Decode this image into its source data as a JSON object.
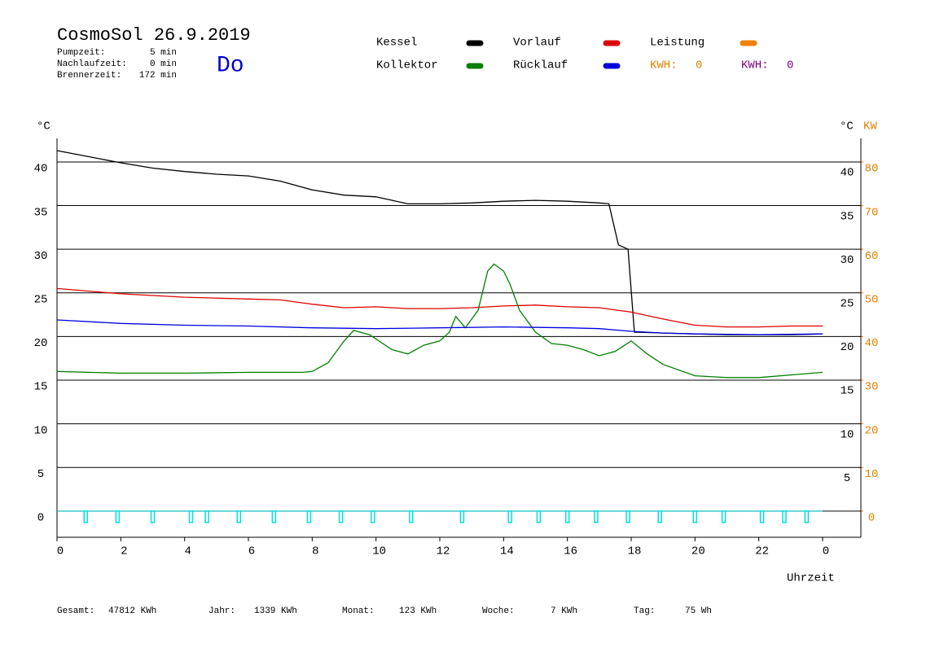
{
  "header": {
    "title": "CosmoSol 26.9.2019",
    "info": [
      {
        "label": "Pumpzeit:",
        "value": "5 min"
      },
      {
        "label": "Nachlaufzeit:",
        "value": "0 min"
      },
      {
        "label": "Brennerzeit:",
        "value": "172 min"
      }
    ],
    "day": "Do"
  },
  "chart_data": {
    "type": "line",
    "y_unit": "°C",
    "y_right_unit": "°C",
    "y2_unit": "KW",
    "x_label": "Uhrzeit",
    "xlim": [
      0,
      25.2
    ],
    "xticks": [
      0,
      2,
      4,
      6,
      8,
      10,
      12,
      14,
      16,
      18,
      20,
      22,
      {
        "value": 24,
        "label": "0"
      }
    ],
    "ylim": [
      -3,
      42.7
    ],
    "yticks": [
      0,
      5,
      10,
      15,
      20,
      25,
      30,
      35,
      40
    ],
    "y_right_ticks": [
      5,
      10,
      15,
      20,
      25,
      30,
      35,
      40
    ],
    "y2lim": [
      -6,
      85.4
    ],
    "y2ticks": [
      0,
      10,
      20,
      30,
      40,
      50,
      60,
      70,
      80
    ],
    "y2_color": "#e08000",
    "grid": true,
    "series": [
      {
        "name": "Kessel",
        "color": "#000000",
        "x": [
          0,
          1,
          2,
          3,
          4,
          5,
          6,
          7,
          8,
          9,
          10,
          11,
          12,
          13,
          14,
          15,
          16,
          17,
          17.3,
          17.6,
          17.9,
          18.1,
          19,
          20,
          21,
          22,
          23,
          24
        ],
        "values": [
          41.3,
          40.6,
          39.9,
          39.3,
          38.9,
          38.6,
          38.4,
          37.8,
          36.8,
          36.2,
          36.0,
          35.2,
          35.2,
          35.3,
          35.5,
          35.6,
          35.5,
          35.3,
          35.2,
          30.5,
          30.0,
          20.5,
          20.4,
          20.3,
          20.2,
          20.2,
          20.2,
          20.3
        ]
      },
      {
        "name": "Vorlauf",
        "color": "#dd0000",
        "x": [
          0,
          2,
          4,
          6,
          7,
          8,
          9,
          10,
          11,
          12,
          13,
          14,
          15,
          16,
          17,
          18,
          19,
          20,
          21,
          22,
          23,
          24
        ],
        "values": [
          25.5,
          24.9,
          24.5,
          24.3,
          24.2,
          23.7,
          23.3,
          23.4,
          23.2,
          23.2,
          23.3,
          23.5,
          23.6,
          23.4,
          23.3,
          22.8,
          22.0,
          21.3,
          21.1,
          21.1,
          21.2,
          21.2
        ]
      },
      {
        "name": "Leistung",
        "color": "#f08000",
        "x": [],
        "values": []
      },
      {
        "name": "Kollektor",
        "color": "#008000",
        "x": [
          0,
          2,
          4,
          6,
          7,
          7.7,
          8,
          8.5,
          9,
          9.3,
          9.8,
          10.5,
          11,
          11.5,
          12,
          12.3,
          12.5,
          12.8,
          13.2,
          13.5,
          13.7,
          14,
          14.2,
          14.5,
          15,
          15.5,
          16,
          16.5,
          17,
          17.5,
          18,
          18.5,
          19,
          20,
          21,
          22,
          23,
          24
        ],
        "values": [
          16.0,
          15.8,
          15.8,
          15.9,
          15.9,
          15.9,
          16.0,
          17.0,
          19.5,
          20.7,
          20.2,
          18.5,
          18.0,
          19.0,
          19.5,
          20.5,
          22.3,
          21.0,
          23.0,
          27.5,
          28.3,
          27.5,
          26.0,
          23.0,
          20.5,
          19.2,
          19.0,
          18.5,
          17.8,
          18.3,
          19.5,
          18.0,
          16.8,
          15.5,
          15.3,
          15.3,
          15.6,
          15.9
        ]
      },
      {
        "name": "Rücklauf",
        "color": "#0000dd",
        "x": [
          0,
          2,
          4,
          6,
          8,
          10,
          12,
          14,
          16,
          17,
          18,
          19,
          20,
          22,
          24
        ],
        "values": [
          21.9,
          21.5,
          21.3,
          21.2,
          21.0,
          20.9,
          21.0,
          21.1,
          21.0,
          20.9,
          20.6,
          20.4,
          20.3,
          20.2,
          20.3
        ]
      }
    ],
    "kwh_labels": [
      {
        "label": "KWH:",
        "value": 0,
        "color": "#e08000"
      },
      {
        "label": "KWH:",
        "value": 0,
        "color": "#800080"
      }
    ],
    "pulses": {
      "color": "#00e0e0",
      "x": [
        0.9,
        1.9,
        3.0,
        4.2,
        4.7,
        5.7,
        6.8,
        7.9,
        8.9,
        9.9,
        11.1,
        12.7,
        14.2,
        15.1,
        16.0,
        16.9,
        17.9,
        18.9,
        20.0,
        20.9,
        22.1,
        22.8,
        23.5
      ]
    }
  },
  "footer": [
    {
      "label": "Gesamt:",
      "value": "47812 KWh"
    },
    {
      "label": "Jahr:",
      "value": "1339 KWh"
    },
    {
      "label": "Monat:",
      "value": "123 KWh"
    },
    {
      "label": "Woche:",
      "value": "7 KWh"
    },
    {
      "label": "Tag:",
      "value": "75 Wh"
    }
  ]
}
